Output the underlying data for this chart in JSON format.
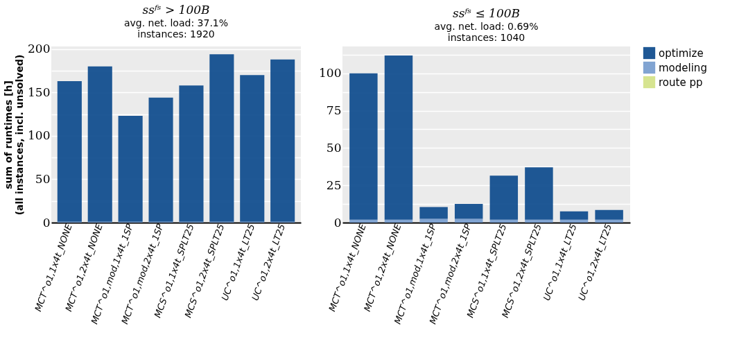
{
  "chart_data": [
    {
      "type": "bar",
      "stacked": true,
      "title": "ssᶠˢ > 100B",
      "subtitle": "avg. net. load: 37.1%\ninstances: 1920",
      "ylabel": "sum of runtimes [h]\n(all instances, incl. unsolved)",
      "categories": [
        "MCT^o1,1x4t_NONE",
        "MCT^o1,2x4t_NONE",
        "MCT^o1,mod,1x4t_1SP",
        "MCT^o1,mod,2x4t_1SP",
        "MCS^o1,1x4t_SPLT25",
        "MCS^o1,2x4t_SPLT25",
        "UC^o1,1x4t_LT25",
        "UC^o1,2x4t_LT25"
      ],
      "series": [
        {
          "color": "#d4e38a",
          "values": [
            0,
            0,
            0,
            0,
            0,
            0,
            0,
            0
          ]
        },
        {
          "color": "#7a9fd0",
          "values": [
            1,
            1,
            1,
            1,
            1,
            1,
            1,
            1
          ]
        },
        {
          "color": "#134f8f",
          "values": [
            162,
            179,
            122,
            143,
            157,
            193,
            169,
            187
          ]
        }
      ],
      "ylim": [
        0,
        203
      ],
      "yticks": [
        0,
        {
          "value": 25,
          "label": null
        },
        50,
        {
          "value": 75,
          "label": null
        },
        100,
        {
          "value": 125,
          "label": null
        },
        150,
        {
          "value": 175,
          "label": null
        },
        200
      ],
      "grid": "y"
    },
    {
      "type": "bar",
      "stacked": true,
      "title": "ssᶠˢ ≤ 100B",
      "subtitle": "avg. net. load: 0.69%\ninstances: 1040",
      "categories": [
        "MCT^o1,1x4t_NONE",
        "MCT^o1,2x4t_NONE",
        "MCT^o1,mod,1x4t_1SP",
        "MCT^o1,mod,2x4t_1SP",
        "MCS^o1,1x4t_SPLT25",
        "MCS^o1,2x4t_SPLT25",
        "UC^o1,1x4t_LT25",
        "UC^o1,2x4t_LT25"
      ],
      "series": [
        {
          "name": "route pp",
          "color": "#d4e38a",
          "values": [
            0,
            0,
            0,
            0,
            0,
            0,
            0,
            0
          ]
        },
        {
          "name": "modeling",
          "color": "#7a9fd0",
          "values": [
            2,
            2,
            2.5,
            2.5,
            2,
            2,
            2,
            2
          ]
        },
        {
          "name": "optimize",
          "color": "#134f8f",
          "values": [
            98,
            110,
            8,
            10,
            29.5,
            35,
            5.5,
            6.5
          ]
        }
      ],
      "ylim": [
        0,
        118
      ],
      "yticks": [
        0,
        {
          "value": 12.5,
          "label": null
        },
        25,
        {
          "value": 37.5,
          "label": null
        },
        50,
        {
          "value": 62.5,
          "label": null
        },
        75,
        {
          "value": 87.5,
          "label": null
        },
        100,
        {
          "value": 112.5,
          "label": null
        }
      ],
      "grid": "y",
      "legend": "right"
    }
  ]
}
